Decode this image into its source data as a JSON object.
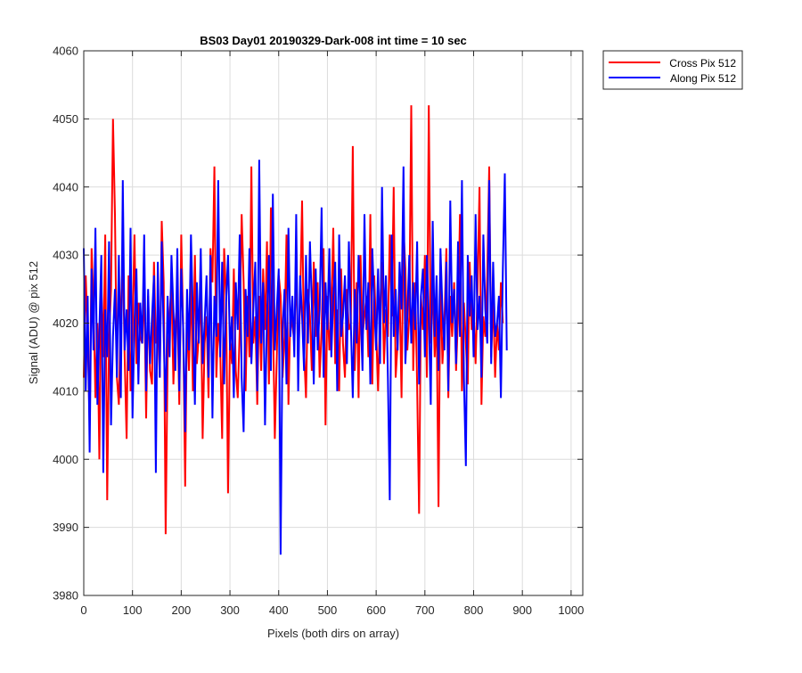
{
  "chart_data": {
    "type": "line",
    "title": "BS03 Day01 20190329-Dark-008 int time = 10 sec",
    "xlabel": "Pixels (both dirs on array)",
    "ylabel": "Signal (ADU) @ pix 512",
    "xlim": [
      0,
      1024
    ],
    "ylim": [
      3980,
      4060
    ],
    "xticks": [
      0,
      100,
      200,
      300,
      400,
      500,
      600,
      700,
      800,
      900,
      1000
    ],
    "yticks": [
      3980,
      3990,
      4000,
      4010,
      4020,
      4030,
      4040,
      4050,
      4060
    ],
    "grid": true,
    "legend_position": "outside-top-right",
    "series": [
      {
        "name": "Cross Pix 512",
        "color": "#ff0000",
        "x_start": 0,
        "x_step": 4,
        "values": [
          4012,
          4027,
          4018,
          4005,
          4031,
          4023,
          4009,
          4020,
          4000,
          4026,
          4015,
          4033,
          3994,
          4018,
          4025,
          4050,
          4036,
          4012,
          4008,
          4022,
          4030,
          4015,
          4003,
          4027,
          4010,
          4019,
          4033,
          4014,
          4023,
          4018,
          4017,
          4026,
          4006,
          4024,
          4013,
          4011,
          4029,
          4017,
          4020,
          4012,
          4035,
          4026,
          3989,
          4015,
          4021,
          4026,
          4011,
          4020,
          4023,
          4008,
          4033,
          4019,
          3996,
          4022,
          4013,
          4027,
          4010,
          4030,
          4014,
          4018,
          4025,
          4003,
          4017,
          4021,
          4009,
          4031,
          4026,
          4043,
          4012,
          4020,
          4016,
          4003,
          4031,
          4024,
          3995,
          4018,
          4014,
          4028,
          4013,
          4009,
          4019,
          4036,
          4026,
          4010,
          4024,
          4015,
          4043,
          4017,
          4021,
          4008,
          4024,
          4013,
          4028,
          4019,
          4032,
          4011,
          4037,
          4022,
          4003,
          4015,
          4027,
          4024,
          4012,
          4018,
          4033,
          4008,
          4022,
          4020,
          4017,
          4029,
          4014,
          4023,
          4038,
          4016,
          4009,
          4025,
          4021,
          4013,
          4029,
          4018,
          4026,
          4012,
          4019,
          4031,
          4005,
          4024,
          4016,
          4021,
          4034,
          4014,
          4022,
          4010,
          4028,
          4017,
          4012,
          4025,
          4019,
          4020,
          4046,
          4013,
          4026,
          4009,
          4030,
          4018,
          4021,
          4024,
          4015,
          4036,
          4011,
          4027,
          4019,
          4010,
          4022,
          4029,
          4014,
          4022,
          4018,
          4033,
          4021,
          4040,
          4012,
          4017,
          4025,
          4009,
          4034,
          4028,
          4016,
          4021,
          4052,
          4013,
          4026,
          4011,
          3992,
          4024,
          4019,
          4030,
          4012,
          4052,
          4017,
          4026,
          4015,
          4022,
          3993,
          4028,
          4014,
          4020,
          4031,
          4009,
          4024,
          4018,
          4026,
          4013,
          4021,
          4036,
          4010,
          4023,
          4017,
          4011,
          4029,
          4019,
          4022,
          4014,
          4025,
          4040,
          4008,
          4021,
          4018,
          4027,
          4043,
          4015,
          4024,
          4012,
          4020,
          4016,
          4026,
          4020
        ]
      },
      {
        "name": "Along Pix 512",
        "color": "#0000ff",
        "x_start": 0,
        "x_step": 4,
        "values": [
          4031,
          4010,
          4024,
          4001,
          4028,
          4016,
          4034,
          4008,
          4019,
          4030,
          3998,
          4022,
          4015,
          4032,
          4005,
          4018,
          4025,
          4012,
          4030,
          4009,
          4041,
          4016,
          4022,
          4013,
          4034,
          4006,
          4020,
          4028,
          4011,
          4023,
          4017,
          4033,
          4010,
          4025,
          4014,
          4021,
          4027,
          3998,
          4029,
          4012,
          4032,
          4018,
          4007,
          4024,
          4015,
          4030,
          4022,
          4013,
          4031,
          4010,
          4028,
          4019,
          4004,
          4025,
          4016,
          4033,
          4021,
          4008,
          4026,
          4017,
          4031,
          4014,
          4020,
          4027,
          4012,
          4030,
          4006,
          4024,
          4018,
          4041,
          4015,
          4029,
          4011,
          4023,
          4030,
          4016,
          4021,
          4009,
          4026,
          4019,
          4033,
          4012,
          4004,
          4025,
          4018,
          4031,
          4014,
          4022,
          4029,
          4010,
          4044,
          4017,
          4026,
          4005,
          4021,
          4030,
          4013,
          4039,
          4016,
          4022,
          4028,
          3986,
          4019,
          4025,
          4011,
          4034,
          4018,
          4024,
          4015,
          4036,
          4010,
          4027,
          4021,
          4013,
          4030,
          4017,
          4032,
          4023,
          4011,
          4028,
          4016,
          4022,
          4037,
          4012,
          4026,
          4019,
          4031,
          4015,
          4024,
          4029,
          4010,
          4033,
          4018,
          4021,
          4027,
          4014,
          4032,
          4020,
          4009,
          4025,
          4017,
          4030,
          4022,
          4013,
          4036,
          4019,
          4026,
          4011,
          4031,
          4023,
          4016,
          4028,
          4014,
          4040,
          4020,
          4027,
          4012,
          3994,
          4033,
          4018,
          4025,
          4016,
          4029,
          4022,
          4043,
          4014,
          4021,
          4030,
          4017,
          4026,
          4019,
          4032,
          4011,
          4024,
          4028,
          4015,
          4030,
          4021,
          4008,
          4035,
          4018,
          4027,
          4013,
          4031,
          4022,
          4016,
          4029,
          4010,
          4038,
          4020,
          4025,
          4014,
          4032,
          4018,
          4041,
          4012,
          3999,
          4030,
          4021,
          4027,
          4015,
          4036,
          4019,
          4024,
          4012,
          4033,
          4022,
          4017,
          4041,
          4014,
          4029,
          4018,
          4020,
          4024,
          4009,
          4028,
          4042,
          4016
        ]
      }
    ]
  }
}
